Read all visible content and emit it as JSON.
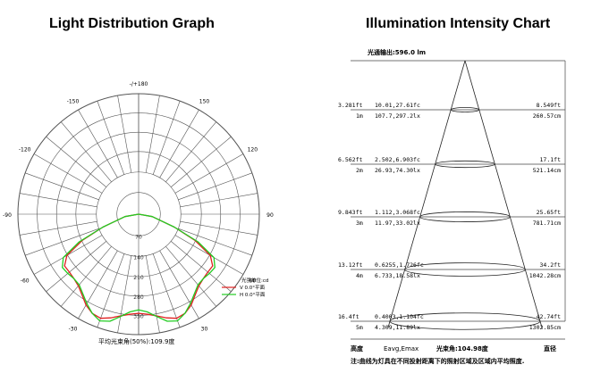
{
  "left_title": "Light Distribution Graph",
  "right_title": "Illumination Intensity Chart",
  "chart_data": [
    {
      "type": "polar",
      "title": "Light Distribution Graph",
      "angle_labels": [
        {
          "deg": 180,
          "text": "-/+180"
        },
        {
          "deg": -150,
          "text": "-150"
        },
        {
          "deg": 150,
          "text": "150"
        },
        {
          "deg": -120,
          "text": "-120"
        },
        {
          "deg": 120,
          "text": "120"
        },
        {
          "deg": -90,
          "text": "-90"
        },
        {
          "deg": 90,
          "text": "90"
        },
        {
          "deg": -60,
          "text": "-60"
        },
        {
          "deg": 60,
          "text": "60"
        },
        {
          "deg": -30,
          "text": "-30"
        },
        {
          "deg": 30,
          "text": "30"
        }
      ],
      "radial_max": 350,
      "radial_ticks": [
        70,
        140,
        210,
        280,
        350
      ],
      "radial_tick_labels": [
        "70",
        "140",
        "210",
        "280",
        "350"
      ],
      "legend_title": "光强单位:cd",
      "series": [
        {
          "name": "V 0.0°平面",
          "color": "#e02020",
          "points": [
            [
              -90,
              0
            ],
            [
              -80,
              40
            ],
            [
              -70,
              110
            ],
            [
              -65,
              180
            ],
            [
              -60,
              240
            ],
            [
              -55,
              262
            ],
            [
              -50,
              262
            ],
            [
              -45,
              265
            ],
            [
              -40,
              272
            ],
            [
              -35,
              286
            ],
            [
              -30,
              305
            ],
            [
              -25,
              318
            ],
            [
              -20,
              322
            ],
            [
              -15,
              312
            ],
            [
              -10,
              300
            ],
            [
              -5,
              292
            ],
            [
              0,
              288
            ],
            [
              5,
              292
            ],
            [
              10,
              300
            ],
            [
              15,
              312
            ],
            [
              20,
              322
            ],
            [
              25,
              318
            ],
            [
              30,
              305
            ],
            [
              35,
              286
            ],
            [
              40,
              272
            ],
            [
              45,
              265
            ],
            [
              50,
              262
            ],
            [
              55,
              262
            ],
            [
              60,
              240
            ],
            [
              65,
              180
            ],
            [
              70,
              110
            ],
            [
              80,
              40
            ],
            [
              90,
              0
            ]
          ]
        },
        {
          "name": "H 0.0°平面",
          "color": "#22cc22",
          "points": [
            [
              -90,
              0
            ],
            [
              -80,
              40
            ],
            [
              -70,
              110
            ],
            [
              -65,
              190
            ],
            [
              -60,
              252
            ],
            [
              -55,
              270
            ],
            [
              -50,
              268
            ],
            [
              -45,
              265
            ],
            [
              -40,
              268
            ],
            [
              -35,
              282
            ],
            [
              -30,
              300
            ],
            [
              -25,
              318
            ],
            [
              -20,
              330
            ],
            [
              -15,
              322
            ],
            [
              -10,
              302
            ],
            [
              -5,
              285
            ],
            [
              0,
              278
            ],
            [
              5,
              285
            ],
            [
              10,
              302
            ],
            [
              15,
              322
            ],
            [
              20,
              330
            ],
            [
              25,
              318
            ],
            [
              30,
              300
            ],
            [
              35,
              282
            ],
            [
              40,
              268
            ],
            [
              45,
              265
            ],
            [
              50,
              268
            ],
            [
              55,
              270
            ],
            [
              60,
              252
            ],
            [
              65,
              190
            ],
            [
              70,
              110
            ],
            [
              80,
              40
            ],
            [
              90,
              0
            ]
          ]
        }
      ],
      "footer": "平均光束角(50%):109.9度"
    },
    {
      "type": "table",
      "title": "Illumination Intensity Chart",
      "header": "光通输出:596.0 lm",
      "rows": [
        {
          "ft": "3.281ft",
          "m": "1m",
          "fc": "10.01,27.61fc",
          "lx": "107.7,297.2lx",
          "dia_ft": "8.549ft",
          "dia_cm": "260.57cm"
        },
        {
          "ft": "6.562ft",
          "m": "2m",
          "fc": "2.502,6.903fc",
          "lx": "26.93,74.30lx",
          "dia_ft": "17.1ft",
          "dia_cm": "521.14cm"
        },
        {
          "ft": "9.843ft",
          "m": "3m",
          "fc": "1.112,3.068fc",
          "lx": "11.97,33.02lx",
          "dia_ft": "25.65ft",
          "dia_cm": "781.71cm"
        },
        {
          "ft": "13.12ft",
          "m": "4m",
          "fc": "0.6255,1.726fc",
          "lx": "6.733,18.58lx",
          "dia_ft": "34.2ft",
          "dia_cm": "1042.28cm"
        },
        {
          "ft": "16.4ft",
          "m": "5m",
          "fc": "0.4003,1.104fc",
          "lx": "4.309,11.89lx",
          "dia_ft": "42.74ft",
          "dia_cm": "1302.85cm"
        }
      ],
      "footer_left": "高度",
      "footer_mid": "Eavg,Emax",
      "footer_angle": "光束角:104.98度",
      "footer_right": "直径",
      "note": "注:曲线为灯具在不同投射距离下的照射区域及区域内平均照度."
    }
  ]
}
